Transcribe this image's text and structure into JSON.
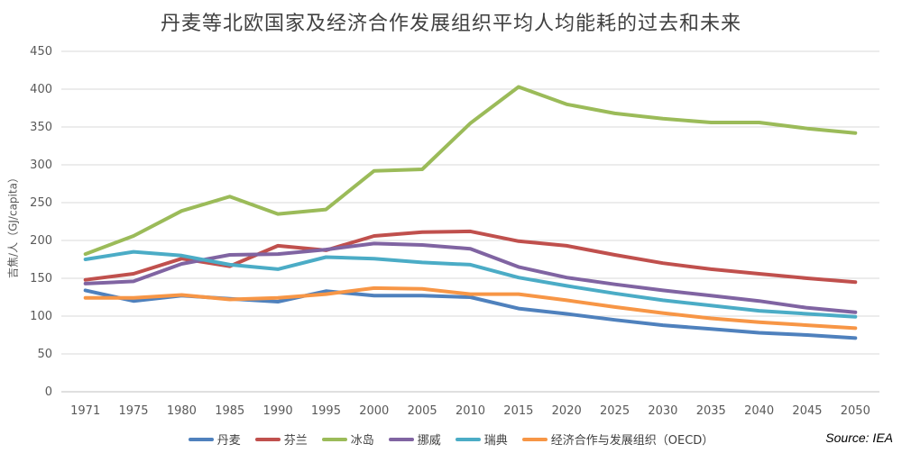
{
  "chart_data": {
    "type": "line",
    "title": "丹麦等北欧国家及经济合作发展组织平均人均能耗的过去和未来",
    "xlabel": "",
    "ylabel": "吉焦/人（GJ/capita）",
    "source": "Source: IEA",
    "ylim": [
      0,
      450
    ],
    "yticks": [
      0,
      50,
      100,
      150,
      200,
      250,
      300,
      350,
      400,
      450
    ],
    "grid": true,
    "legend_position": "bottom",
    "categories": [
      "1971",
      "1975",
      "1980",
      "1985",
      "1990",
      "1995",
      "2000",
      "2005",
      "2010",
      "2015",
      "2020",
      "2025",
      "2030",
      "2035",
      "2040",
      "2045",
      "2050"
    ],
    "series": [
      {
        "name": "丹麦",
        "color": "#4F81BD",
        "values": [
          134,
          120,
          127,
          123,
          119,
          133,
          127,
          127,
          125,
          110,
          103,
          95,
          88,
          83,
          78,
          75,
          71
        ]
      },
      {
        "name": "芬兰",
        "color": "#C0504D",
        "values": [
          148,
          156,
          176,
          166,
          193,
          187,
          206,
          211,
          212,
          199,
          193,
          181,
          170,
          162,
          156,
          150,
          145
        ]
      },
      {
        "name": "冰岛",
        "color": "#9BBB59",
        "values": [
          182,
          206,
          239,
          258,
          235,
          241,
          292,
          294,
          355,
          403,
          380,
          368,
          361,
          356,
          356,
          348,
          342
        ]
      },
      {
        "name": "挪威",
        "color": "#8064A2",
        "values": [
          143,
          146,
          169,
          181,
          182,
          188,
          196,
          194,
          189,
          165,
          151,
          142,
          134,
          127,
          120,
          111,
          105
        ]
      },
      {
        "name": "瑞典",
        "color": "#4BACC6",
        "values": [
          175,
          185,
          180,
          168,
          162,
          178,
          176,
          171,
          168,
          151,
          140,
          130,
          121,
          114,
          107,
          103,
          99
        ]
      },
      {
        "name": "经济合作与发展组织（OECD）",
        "color": "#F79646",
        "values": [
          124,
          124,
          128,
          122,
          124,
          129,
          137,
          136,
          129,
          129,
          121,
          112,
          104,
          97,
          92,
          88,
          84
        ]
      }
    ]
  }
}
